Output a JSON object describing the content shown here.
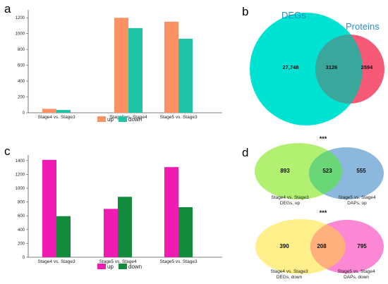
{
  "panels": {
    "a": {
      "letter": "a"
    },
    "b": {
      "letter": "b"
    },
    "c": {
      "letter": "c"
    },
    "d": {
      "letter": "d"
    }
  },
  "chart_data": [
    {
      "id": "a",
      "type": "bar",
      "categories": [
        "Stage4 vs. Stage3",
        "Stage5 vs. Stage4",
        "Stage5 vs. Stage3"
      ],
      "series": [
        {
          "name": "up",
          "color": "#fc9163",
          "values": [
            50,
            1200,
            1150
          ]
        },
        {
          "name": "down",
          "color": "#20c3a6",
          "values": [
            35,
            1070,
            935
          ]
        }
      ],
      "ylim": [
        0,
        1300
      ],
      "yticks": [
        "0",
        "200",
        "400",
        "600",
        "800",
        "1000",
        "1200"
      ],
      "legend_position": "bottom-center"
    },
    {
      "id": "c",
      "type": "bar",
      "categories": [
        "Stage4 vs. Stage3",
        "Stage5 vs. Stage4",
        "Stage5 vs. Stage3"
      ],
      "series": [
        {
          "name": "up",
          "color": "#f01cb1",
          "values": [
            1410,
            700,
            1305
          ]
        },
        {
          "name": "down",
          "color": "#128c3c",
          "values": [
            595,
            875,
            725
          ]
        }
      ],
      "ylim": [
        0,
        1480
      ],
      "yticks": [
        "0",
        "200",
        "400",
        "600",
        "800",
        "1000",
        "1200",
        "1400"
      ],
      "legend_position": "bottom-center"
    }
  ],
  "venn_b": {
    "left_label": "DEGs",
    "right_label": "Proteins",
    "left_only": "27,748",
    "overlap": "3126",
    "right_only": "2594",
    "left_color": "#00e3d3",
    "right_color": "#f65a77"
  },
  "venn_d": [
    {
      "significance": "***",
      "left_only": "893",
      "overlap": "523",
      "right_only": "555",
      "left_label": [
        "Stage4 vs. Stage3",
        "DEGs, up"
      ],
      "right_label": [
        "Stage5 vs. Stage4",
        "DAPs, up"
      ],
      "left_color": "#b2f072",
      "right_color": "#8cb8de"
    },
    {
      "significance": "***",
      "left_only": "390",
      "overlap": "208",
      "right_only": "795",
      "left_label": [
        "Stage4 vs. Stage3",
        "DEGs, down"
      ],
      "right_label": [
        "Stage5 vs. Stage4",
        "DAPs, down"
      ],
      "left_color": "#fff08c",
      "right_color": "#fb87d5"
    }
  ]
}
